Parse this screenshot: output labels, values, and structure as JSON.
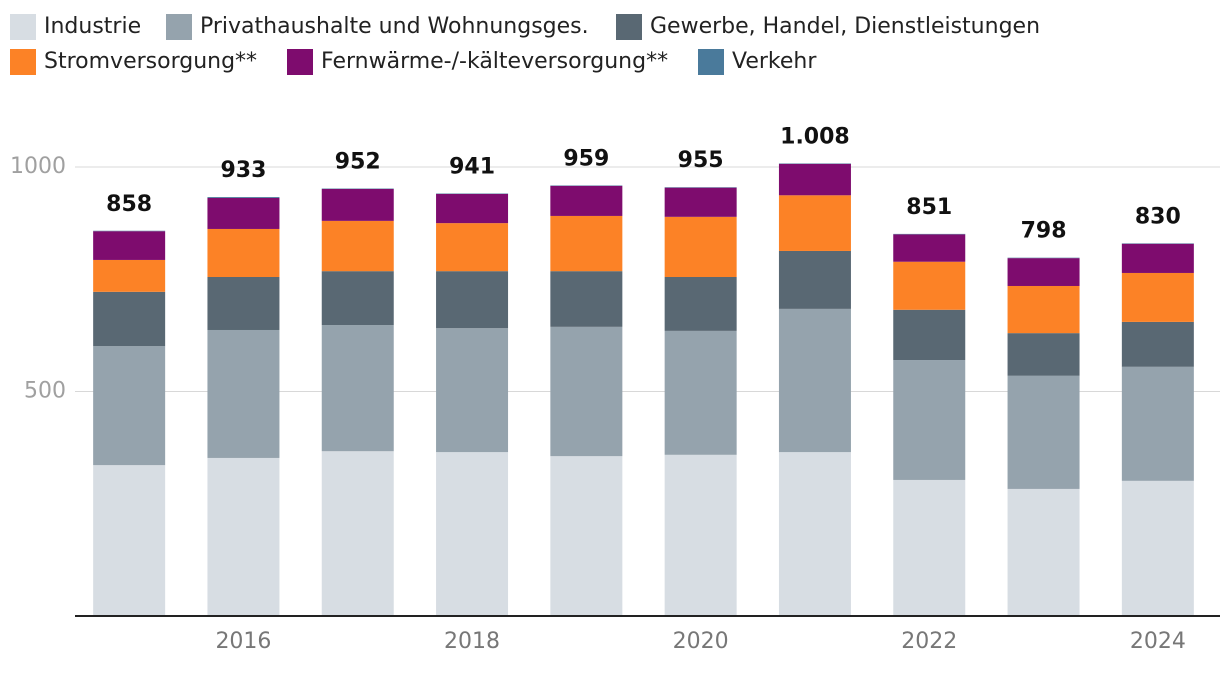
{
  "chart_data": {
    "type": "stacked-bar",
    "categories": [
      null,
      "2016",
      null,
      "2018",
      null,
      "2020",
      null,
      "2022",
      null,
      "2024"
    ],
    "series": [
      {
        "name": "Industrie",
        "color": "#d7dde3",
        "values": [
          336,
          352,
          367,
          365,
          356,
          359,
          365,
          303,
          283,
          301
        ]
      },
      {
        "name": "Privathaushalte und Wohnungsges.",
        "color": "#95a3ad",
        "values": [
          265,
          285,
          281,
          276,
          288,
          276,
          319,
          267,
          252,
          254
        ]
      },
      {
        "name": "Gewerbe, Handel, Dienstleistungen",
        "color": "#596873",
        "values": [
          121,
          118,
          120,
          127,
          124,
          120,
          129,
          112,
          95,
          100
        ]
      },
      {
        "name": "Stromversorgung**",
        "color": "#fc8226",
        "values": [
          71,
          107,
          112,
          107,
          123,
          134,
          124,
          107,
          105,
          109
        ]
      },
      {
        "name": "Fernwärme-/-kälteversorgung**",
        "color": "#7e0c6e",
        "values": [
          64,
          69,
          71,
          65,
          67,
          65,
          70,
          61,
          62,
          65
        ]
      },
      {
        "name": "Verkehr",
        "color": "#4a7a9b",
        "values": [
          1,
          2,
          1,
          1,
          1,
          1,
          1,
          1,
          1,
          1
        ]
      }
    ],
    "totals": [
      858,
      933,
      952,
      941,
      959,
      955,
      1008,
      851,
      798,
      830
    ],
    "value_labels": [
      "858",
      "933",
      "952",
      "941",
      "959",
      "955",
      "1.008",
      "851",
      "798",
      "830"
    ],
    "ylim": [
      0,
      1100
    ],
    "yticks": [
      500,
      1000
    ],
    "grid": true
  }
}
